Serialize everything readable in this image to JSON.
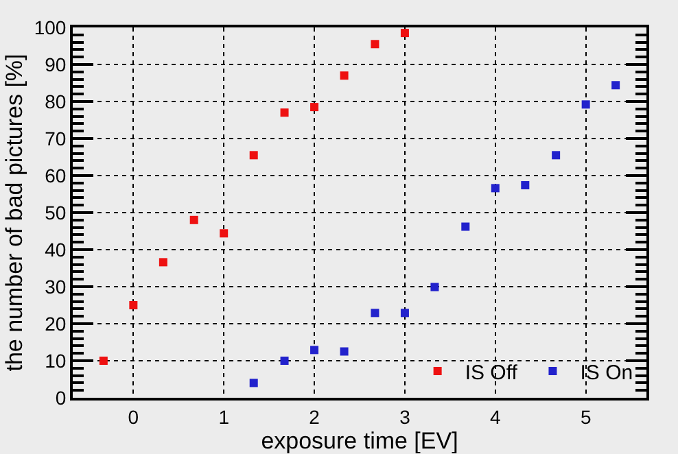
{
  "chart_data": {
    "type": "scatter",
    "xlabel": "exposure time [EV]",
    "ylabel": "the number of bad pictures [%]",
    "xlim": [
      -0.67,
      5.67
    ],
    "xticks": [
      0,
      1,
      2,
      3,
      4,
      5
    ],
    "ylim": [
      0,
      100
    ],
    "yticks": [
      0,
      10,
      20,
      30,
      40,
      50,
      60,
      70,
      80,
      90,
      100
    ],
    "grid": true,
    "legend": "bottom right",
    "marker": "square",
    "series": [
      {
        "name": "IS Off",
        "color": "#ee1111",
        "x": [
          -0.33,
          0,
          0.33,
          0.67,
          1,
          1.33,
          1.67,
          2,
          2.33,
          2.67,
          3
        ],
        "values": [
          10,
          25,
          36.6,
          48,
          44.4,
          65.5,
          77,
          78.5,
          87,
          95.5,
          98.5
        ]
      },
      {
        "name": "IS On",
        "color": "#2222cc",
        "x": [
          1.33,
          1.67,
          2,
          2.33,
          2.67,
          3,
          3.33,
          3.67,
          4,
          4.33,
          4.67,
          5,
          5.33
        ],
        "values": [
          4,
          10,
          12.9,
          12.5,
          22.9,
          22.9,
          29.9,
          46.2,
          56.6,
          57.4,
          65.5,
          79.2,
          84.4
        ]
      }
    ]
  }
}
